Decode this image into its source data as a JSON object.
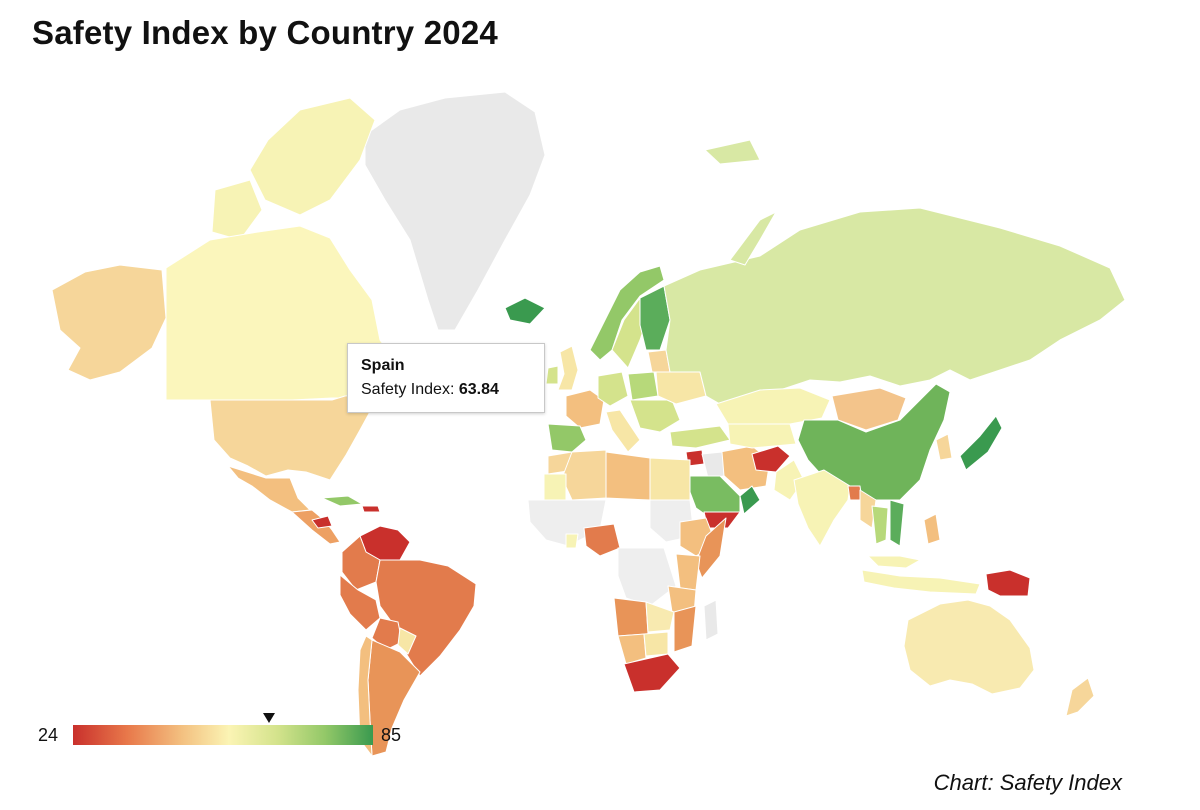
{
  "title": "Safety Index by Country 2024",
  "source": "Chart: Safety Index",
  "tooltip": {
    "country": "Spain",
    "metric_label": "Safety Index:",
    "value": "63.84"
  },
  "legend": {
    "min_label": "24",
    "max_label": "85",
    "marker_value": 63.84,
    "colors": [
      "#c9302c",
      "#e8784a",
      "#f3bf7f",
      "#fbf4b4",
      "#d4e38c",
      "#93c868",
      "#3a9a4f"
    ],
    "no_data_color": "#eeeeee"
  },
  "chart_data": {
    "type": "choropleth",
    "metric": "Safety Index",
    "value_range": [
      24,
      85
    ],
    "regions": [
      {
        "name": "Spain",
        "value": 63.84
      }
    ]
  }
}
